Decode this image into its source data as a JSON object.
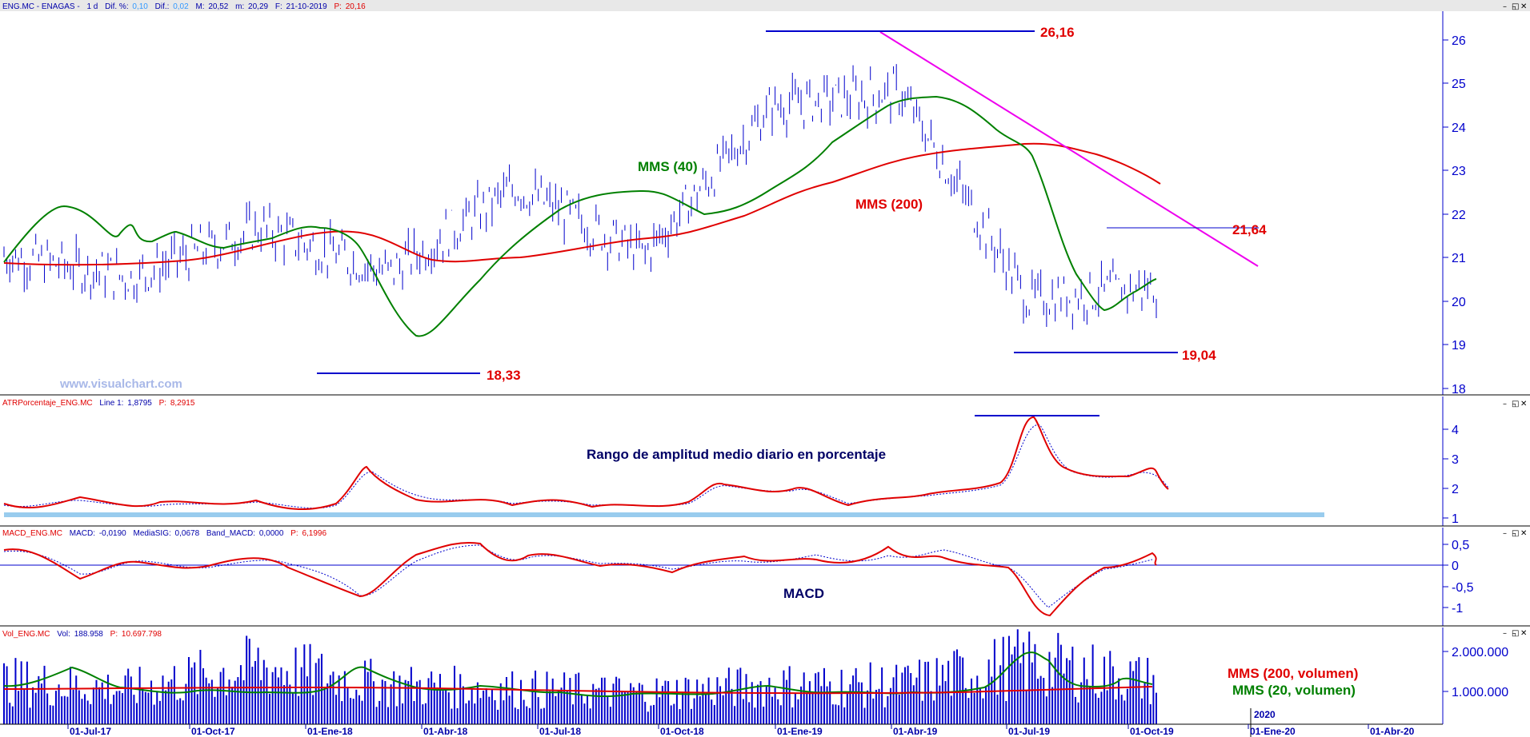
{
  "window_controls": {
    "minimize": "–",
    "restore": "◱",
    "close": "✕"
  },
  "colors": {
    "price": "#0000cc",
    "mms40": "#008000",
    "mms200": "#e00000",
    "trend": "#ee00ee",
    "atr_band": "#99ccee",
    "axis": "#0000cc"
  },
  "panels": {
    "price": {
      "header": {
        "symbol": "ENG.MC - ENAGAS -",
        "period": "1 d",
        "dif_pct_label": "Dif. %:",
        "dif_pct": "0,10",
        "dif_label": "Dif.:",
        "dif": "0,02",
        "max_label": "M:",
        "max": "20,52",
        "min_label": "m:",
        "min": "20,29",
        "date_label": "F:",
        "date": "21-10-2019",
        "last_label": "P:",
        "last": "20,16"
      },
      "watermark": "www.visualchart.com",
      "labels": {
        "mms40": "MMS (40)",
        "mms200": "MMS (200)"
      },
      "levels": [
        {
          "id": "high",
          "text": "26,16",
          "value": 26.16
        },
        {
          "id": "resistance",
          "text": "21,64",
          "value": 21.64
        },
        {
          "id": "low1",
          "text": "18,33",
          "value": 18.33
        },
        {
          "id": "low2",
          "text": "19,04",
          "value": 19.04
        }
      ],
      "y_ticks": [
        "26",
        "25",
        "24",
        "23",
        "22",
        "21",
        "20",
        "19",
        "18"
      ]
    },
    "atr": {
      "header": {
        "name": "ATRPorcentaje_ENG.MC",
        "line_label": "Line 1:",
        "line": "1,8795",
        "p_label": "P:",
        "p": "8,2915"
      },
      "title": "Rango de amplitud medio diario en porcentaje",
      "y_ticks": [
        "4",
        "3",
        "2",
        "1"
      ]
    },
    "macd": {
      "header": {
        "name": "MACD_ENG.MC",
        "macd_label": "MACD:",
        "macd": "-0,0190",
        "sig_label": "MediaSIG:",
        "sig": "0,0678",
        "band_label": "Band_MACD:",
        "band": "0,0000",
        "p_label": "P:",
        "p": "6,1996"
      },
      "title": "MACD",
      "y_ticks": [
        "0,5",
        "0",
        "-0,5",
        "-1"
      ]
    },
    "volume": {
      "header": {
        "name": "Vol_ENG.MC",
        "vol_label": "Vol:",
        "vol": "188.958",
        "p_label": "P:",
        "p": "10.697.798"
      },
      "labels": {
        "mms200": "MMS (200, volumen)",
        "mms20": "MMS (20, volumen)"
      },
      "y_ticks": [
        "2.000.000",
        "1.000.000"
      ]
    }
  },
  "x_axis": {
    "ticks": [
      "01-Jul-17",
      "01-Oct-17",
      "01-Ene-18",
      "01-Abr-18",
      "01-Jul-18",
      "01-Oct-18",
      "01-Ene-19",
      "01-Abr-19",
      "01-Jul-19",
      "01-Oct-19",
      "01-Ene-20",
      "01-Abr-20"
    ],
    "year_marker": "2020"
  },
  "chart_data": [
    {
      "type": "line",
      "title": "ENG.MC - ENAGAS - 1 d",
      "x": [
        "01-Jul-17",
        "01-Oct-17",
        "01-Ene-18",
        "01-Abr-18",
        "01-Jul-18",
        "01-Oct-18",
        "01-Ene-19",
        "01-Abr-19",
        "01-Jul-19",
        "01-Oct-19"
      ],
      "series": [
        {
          "name": "MMS (40)",
          "values": [
            22.0,
            21.4,
            21.7,
            19.5,
            22.4,
            22.0,
            23.8,
            24.6,
            22.0,
            20.4
          ]
        },
        {
          "name": "MMS (200)",
          "values": [
            20.85,
            20.85,
            21.5,
            20.9,
            20.9,
            21.2,
            22.5,
            23.3,
            23.3,
            22.7
          ]
        }
      ],
      "close": [
        21.0,
        20.5,
        21.6,
        20.6,
        22.5,
        21.0,
        24.3,
        24.6,
        20.0,
        20.3
      ],
      "ylim": [
        17.9,
        26.4
      ]
    },
    {
      "type": "line",
      "x": [
        "01-Jul-17",
        "01-Oct-17",
        "01-Ene-18",
        "01-Abr-18",
        "01-Jul-18",
        "01-Oct-18",
        "01-Ene-19",
        "01-Abr-19",
        "01-Jul-19",
        "01-Oct-19"
      ],
      "series": [
        {
          "name": "ATRPorcentaje_ENG.MC",
          "values": [
            1.6,
            1.3,
            1.6,
            1.5,
            1.4,
            2.1,
            2.2,
            1.6,
            2.9,
            2.2
          ]
        }
      ],
      "ylim": [
        0.8,
        4.8
      ]
    },
    {
      "type": "line",
      "x": [
        "01-Jul-17",
        "01-Oct-17",
        "01-Ene-18",
        "01-Abr-18",
        "01-Jul-18",
        "01-Oct-18",
        "01-Ene-19",
        "01-Abr-19",
        "01-Jul-19",
        "01-Oct-19"
      ],
      "series": [
        {
          "name": "MACD",
          "values": [
            -0.1,
            0.1,
            -0.15,
            0.2,
            0.3,
            0.0,
            0.1,
            0.25,
            -0.5,
            0.2
          ]
        },
        {
          "name": "MediaSIG",
          "values": [
            -0.05,
            0.1,
            -0.1,
            0.15,
            0.3,
            0.05,
            0.08,
            0.25,
            -0.4,
            0.25
          ]
        }
      ],
      "ylim": [
        -1.4,
        0.7
      ]
    },
    {
      "type": "bar",
      "x": [
        "01-Jul-17",
        "01-Oct-17",
        "01-Ene-18",
        "01-Abr-18",
        "01-Jul-18",
        "01-Oct-18",
        "01-Ene-19",
        "01-Abr-19",
        "01-Jul-19",
        "01-Oct-19"
      ],
      "series": [
        {
          "name": "Vol_ENG.MC",
          "values": [
            1100000,
            900000,
            1500000,
            1000000,
            900000,
            800000,
            1000000,
            1000000,
            1600000,
            1100000
          ]
        },
        {
          "name": "MMS (20, volumen)",
          "values": [
            1100000,
            950000,
            1500000,
            1000000,
            900000,
            900000,
            1000000,
            950000,
            1800000,
            1200000
          ]
        },
        {
          "name": "MMS (200, volumen)",
          "values": [
            1060000,
            1050000,
            1050000,
            1000000,
            950000,
            950000,
            950000,
            960000,
            1040000,
            1060000
          ]
        }
      ],
      "ylim": [
        0,
        2500000
      ]
    }
  ]
}
